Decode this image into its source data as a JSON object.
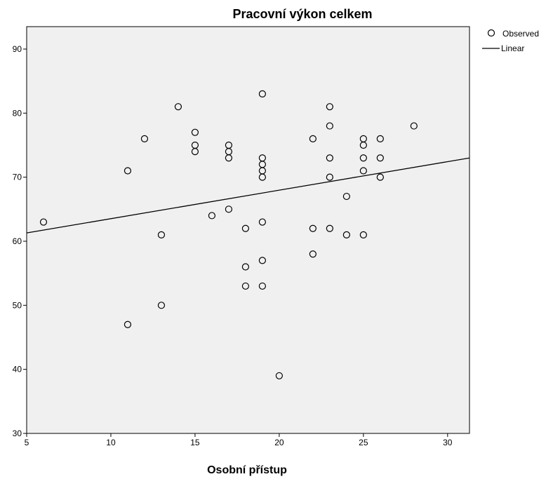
{
  "chart_data": {
    "type": "scatter",
    "title": "Pracovní výkon celkem",
    "xlabel": "Osobní přístup",
    "ylabel": "",
    "xlim": [
      5,
      31.3
    ],
    "ylim": [
      30,
      93.5
    ],
    "xticks": [
      5,
      10,
      15,
      20,
      25,
      30
    ],
    "yticks": [
      30,
      40,
      50,
      60,
      70,
      80,
      90
    ],
    "grid": false,
    "legend_position": "top-right",
    "legend": [
      "Observed",
      "Linear"
    ],
    "colors": {
      "background": "#f0f0f0",
      "marker": "#000000",
      "line": "#000000"
    },
    "series": [
      {
        "name": "Observed",
        "kind": "points",
        "points": [
          [
            6,
            63
          ],
          [
            11,
            71
          ],
          [
            11,
            47
          ],
          [
            12,
            76
          ],
          [
            13,
            61
          ],
          [
            13,
            50
          ],
          [
            14,
            81
          ],
          [
            15,
            77
          ],
          [
            15,
            75
          ],
          [
            15,
            74
          ],
          [
            16,
            64
          ],
          [
            17,
            75
          ],
          [
            17,
            74
          ],
          [
            17,
            73
          ],
          [
            17,
            65
          ],
          [
            18,
            62
          ],
          [
            18,
            56
          ],
          [
            18,
            53
          ],
          [
            19,
            83
          ],
          [
            19,
            73
          ],
          [
            19,
            72
          ],
          [
            19,
            71
          ],
          [
            19,
            70
          ],
          [
            19,
            63
          ],
          [
            19,
            57
          ],
          [
            19,
            53
          ],
          [
            20,
            39
          ],
          [
            22,
            76
          ],
          [
            22,
            62
          ],
          [
            22,
            58
          ],
          [
            23,
            81
          ],
          [
            23,
            78
          ],
          [
            23,
            73
          ],
          [
            23,
            70
          ],
          [
            23,
            62
          ],
          [
            24,
            67
          ],
          [
            24,
            61
          ],
          [
            25,
            76
          ],
          [
            25,
            75
          ],
          [
            25,
            73
          ],
          [
            25,
            71
          ],
          [
            25,
            61
          ],
          [
            26,
            76
          ],
          [
            26,
            73
          ],
          [
            26,
            70
          ],
          [
            28,
            78
          ]
        ]
      },
      {
        "name": "Linear",
        "kind": "line",
        "points": [
          [
            5,
            61.3
          ],
          [
            31.3,
            73
          ]
        ]
      }
    ]
  }
}
